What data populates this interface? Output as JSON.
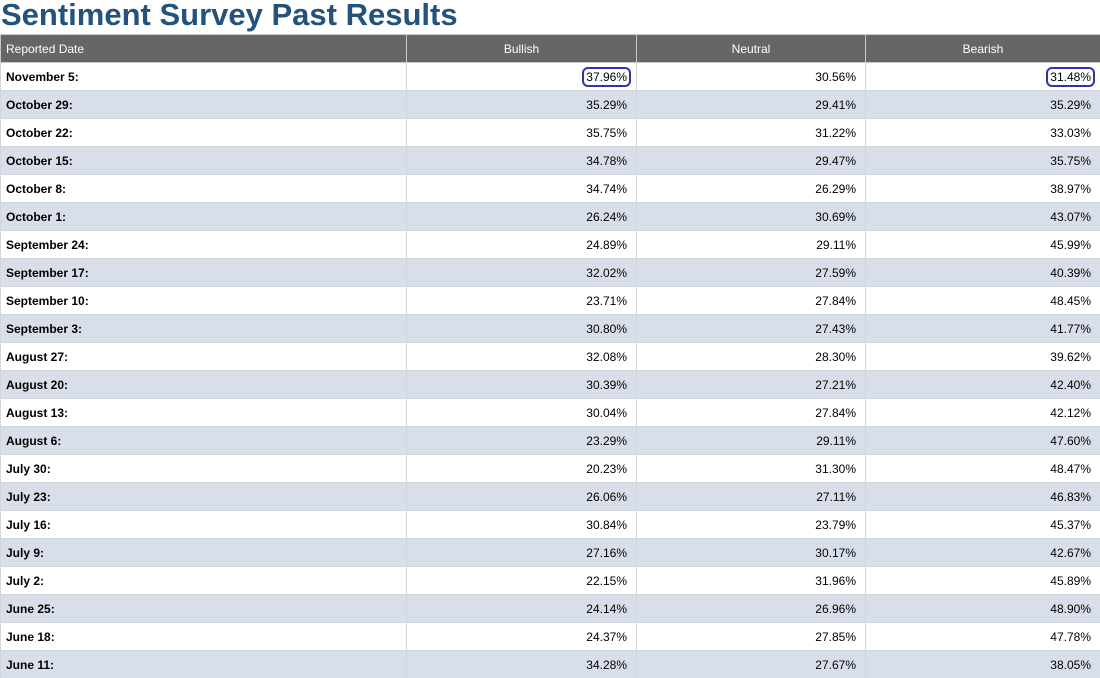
{
  "page": {
    "title": "Sentiment Survey Past Results"
  },
  "table": {
    "headers": [
      "Reported Date",
      "Bullish",
      "Neutral",
      "Bearish"
    ],
    "rows": [
      {
        "date": "November 5:",
        "bullish": "37.96%",
        "neutral": "30.56%",
        "bearish": "31.48%"
      },
      {
        "date": "October 29:",
        "bullish": "35.29%",
        "neutral": "29.41%",
        "bearish": "35.29%"
      },
      {
        "date": "October 22:",
        "bullish": "35.75%",
        "neutral": "31.22%",
        "bearish": "33.03%"
      },
      {
        "date": "October 15:",
        "bullish": "34.78%",
        "neutral": "29.47%",
        "bearish": "35.75%"
      },
      {
        "date": "October 8:",
        "bullish": "34.74%",
        "neutral": "26.29%",
        "bearish": "38.97%"
      },
      {
        "date": "October 1:",
        "bullish": "26.24%",
        "neutral": "30.69%",
        "bearish": "43.07%"
      },
      {
        "date": "September 24:",
        "bullish": "24.89%",
        "neutral": "29.11%",
        "bearish": "45.99%"
      },
      {
        "date": "September 17:",
        "bullish": "32.02%",
        "neutral": "27.59%",
        "bearish": "40.39%"
      },
      {
        "date": "September 10:",
        "bullish": "23.71%",
        "neutral": "27.84%",
        "bearish": "48.45%"
      },
      {
        "date": "September 3:",
        "bullish": "30.80%",
        "neutral": "27.43%",
        "bearish": "41.77%"
      },
      {
        "date": "August 27:",
        "bullish": "32.08%",
        "neutral": "28.30%",
        "bearish": "39.62%"
      },
      {
        "date": "August 20:",
        "bullish": "30.39%",
        "neutral": "27.21%",
        "bearish": "42.40%"
      },
      {
        "date": "August 13:",
        "bullish": "30.04%",
        "neutral": "27.84%",
        "bearish": "42.12%"
      },
      {
        "date": "August 6:",
        "bullish": "23.29%",
        "neutral": "29.11%",
        "bearish": "47.60%"
      },
      {
        "date": "July 30:",
        "bullish": "20.23%",
        "neutral": "31.30%",
        "bearish": "48.47%"
      },
      {
        "date": "July 23:",
        "bullish": "26.06%",
        "neutral": "27.11%",
        "bearish": "46.83%"
      },
      {
        "date": "July 16:",
        "bullish": "30.84%",
        "neutral": "23.79%",
        "bearish": "45.37%"
      },
      {
        "date": "July 9:",
        "bullish": "27.16%",
        "neutral": "30.17%",
        "bearish": "42.67%"
      },
      {
        "date": "July 2:",
        "bullish": "22.15%",
        "neutral": "31.96%",
        "bearish": "45.89%"
      },
      {
        "date": "June 25:",
        "bullish": "24.14%",
        "neutral": "26.96%",
        "bearish": "48.90%"
      },
      {
        "date": "June 18:",
        "bullish": "24.37%",
        "neutral": "27.85%",
        "bearish": "47.78%"
      },
      {
        "date": "June 11:",
        "bullish": "34.28%",
        "neutral": "27.67%",
        "bearish": "38.05%"
      }
    ],
    "highlighted_cells": [
      {
        "row": 0,
        "column": "bullish"
      },
      {
        "row": 0,
        "column": "bearish"
      }
    ]
  },
  "colors": {
    "title": "#23527c",
    "header_bg": "#666666",
    "alt_row_bg": "#d9dfea",
    "highlight_outline": "#3333aa"
  }
}
